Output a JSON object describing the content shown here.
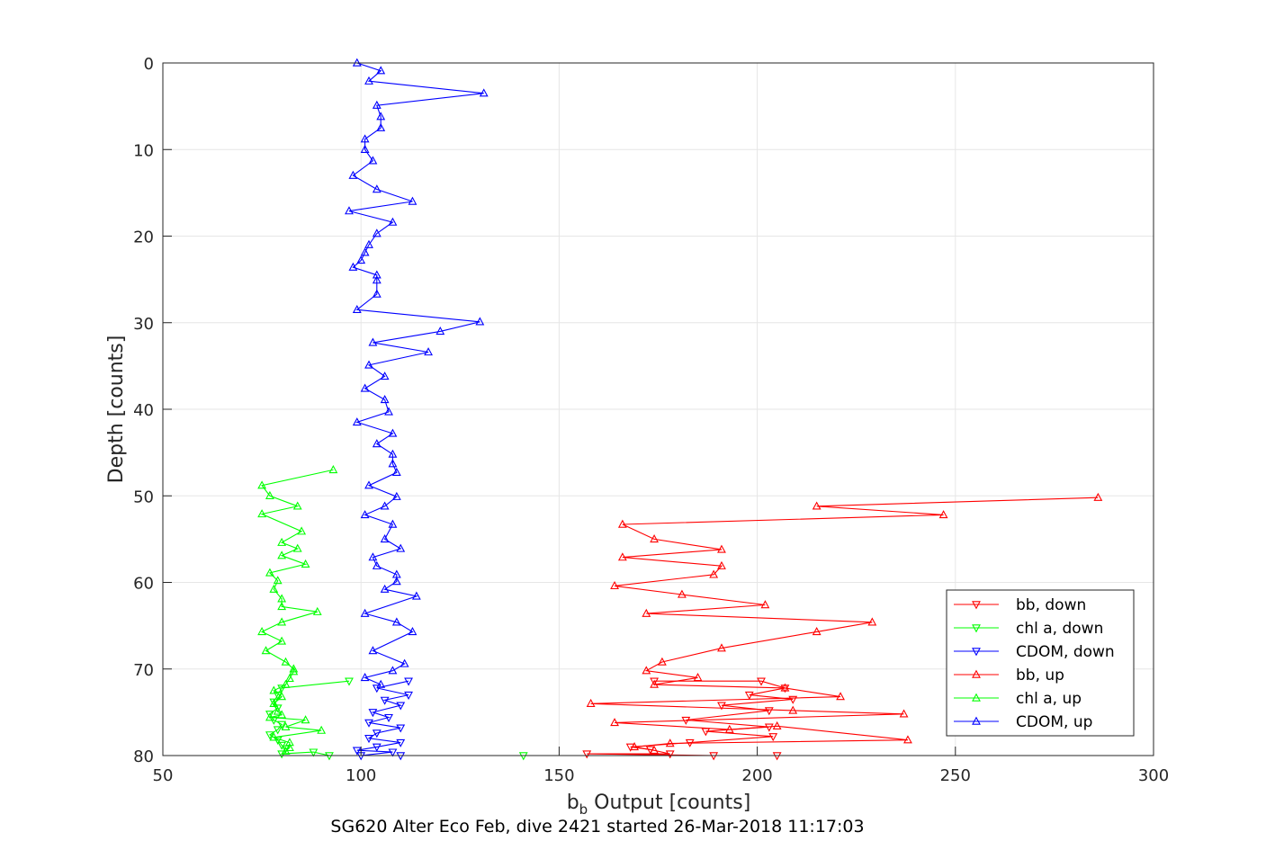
{
  "chart_data": {
    "type": "line",
    "title": "",
    "subtitle": "SG620 Alter Eco Feb, dive 2421 started 26-Mar-2018 11:17:03",
    "xlabel_main": "b",
    "xlabel_sub": "b",
    "xlabel_rest": " Output [counts]",
    "ylabel": "Depth [counts]",
    "xlim": [
      50,
      300
    ],
    "ylim": [
      80,
      0
    ],
    "y_reversed": true,
    "xticks": [
      50,
      100,
      150,
      200,
      250,
      300
    ],
    "yticks": [
      0,
      10,
      20,
      30,
      40,
      50,
      60,
      70,
      80
    ],
    "grid": true,
    "legend_position": "bottom-right",
    "series": [
      {
        "name": "bb, down",
        "color": "#ff0000",
        "marker": "triangle-down",
        "points": [
          [
            174,
            71.4
          ],
          [
            201,
            71.4
          ],
          [
            207,
            72.2
          ],
          [
            198,
            73.0
          ],
          [
            209,
            73.5
          ],
          [
            191,
            74.2
          ],
          [
            203,
            74.8
          ],
          [
            182,
            75.9
          ],
          [
            203,
            76.7
          ],
          [
            187,
            77.2
          ],
          [
            204,
            77.8
          ],
          [
            183,
            78.5
          ],
          [
            168,
            79.0
          ],
          [
            173,
            79.3
          ],
          [
            178,
            79.8
          ],
          [
            157,
            79.8
          ],
          [
            189,
            80.0
          ],
          [
            205,
            80.0
          ]
        ]
      },
      {
        "name": "chl a, down",
        "color": "#00ff00",
        "marker": "triangle-down",
        "points": [
          [
            97,
            71.4
          ],
          [
            80,
            72.2
          ],
          [
            79,
            73.0
          ],
          [
            78,
            73.8
          ],
          [
            79,
            74.5
          ],
          [
            77,
            75.2
          ],
          [
            78,
            75.9
          ],
          [
            80,
            76.4
          ],
          [
            79,
            77.0
          ],
          [
            77,
            77.6
          ],
          [
            79,
            78.2
          ],
          [
            80,
            78.8
          ],
          [
            81,
            79.2
          ],
          [
            80,
            79.8
          ],
          [
            88,
            79.6
          ],
          [
            92,
            80.0
          ],
          [
            141,
            80.0
          ]
        ]
      },
      {
        "name": "CDOM, down",
        "color": "#0000ff",
        "marker": "triangle-down",
        "points": [
          [
            112,
            71.4
          ],
          [
            104,
            72.2
          ],
          [
            112,
            73.0
          ],
          [
            106,
            73.6
          ],
          [
            110,
            74.2
          ],
          [
            103,
            75.0
          ],
          [
            107,
            75.6
          ],
          [
            102,
            76.2
          ],
          [
            110,
            76.8
          ],
          [
            104,
            77.4
          ],
          [
            102,
            78.0
          ],
          [
            110,
            78.5
          ],
          [
            104,
            79.0
          ],
          [
            99,
            79.4
          ],
          [
            108,
            79.6
          ],
          [
            100,
            80.0
          ],
          [
            110,
            80.0
          ]
        ]
      },
      {
        "name": "bb, up",
        "color": "#ff0000",
        "marker": "triangle-up",
        "points": [
          [
            286,
            50.2
          ],
          [
            215,
            51.2
          ],
          [
            247,
            52.2
          ],
          [
            166,
            53.3
          ],
          [
            174,
            55.0
          ],
          [
            191,
            56.2
          ],
          [
            166,
            57.1
          ],
          [
            191,
            58.1
          ],
          [
            189,
            59.1
          ],
          [
            164,
            60.4
          ],
          [
            181,
            61.4
          ],
          [
            202,
            62.6
          ],
          [
            172,
            63.6
          ],
          [
            229,
            64.6
          ],
          [
            215,
            65.7
          ],
          [
            191,
            67.6
          ],
          [
            176,
            69.2
          ],
          [
            172,
            70.2
          ],
          [
            185,
            71.0
          ],
          [
            174,
            71.8
          ],
          [
            207,
            72.2
          ],
          [
            221,
            73.2
          ],
          [
            158,
            74.0
          ],
          [
            209,
            74.8
          ],
          [
            237,
            75.2
          ],
          [
            164,
            76.2
          ],
          [
            193,
            77.0
          ],
          [
            205,
            76.6
          ],
          [
            238,
            78.2
          ],
          [
            178,
            78.6
          ],
          [
            169,
            79.0
          ],
          [
            174,
            79.4
          ]
        ]
      },
      {
        "name": "chl a, up",
        "color": "#00ff00",
        "marker": "triangle-up",
        "points": [
          [
            93,
            47.0
          ],
          [
            75,
            48.8
          ],
          [
            77,
            50.0
          ],
          [
            84,
            51.2
          ],
          [
            75,
            52.1
          ],
          [
            85,
            54.1
          ],
          [
            80,
            55.4
          ],
          [
            84,
            56.1
          ],
          [
            80,
            56.9
          ],
          [
            86,
            57.9
          ],
          [
            77,
            58.9
          ],
          [
            79,
            59.8
          ],
          [
            78,
            60.8
          ],
          [
            80,
            61.9
          ],
          [
            80,
            62.8
          ],
          [
            89,
            63.4
          ],
          [
            80,
            64.6
          ],
          [
            75,
            65.7
          ],
          [
            80,
            66.8
          ],
          [
            76,
            67.9
          ],
          [
            81,
            69.2
          ],
          [
            83,
            70.0
          ],
          [
            83,
            70.3
          ],
          [
            82,
            71.1
          ],
          [
            81,
            71.8
          ],
          [
            78,
            72.5
          ],
          [
            80,
            73.2
          ],
          [
            78,
            74.0
          ],
          [
            79,
            74.9
          ],
          [
            80,
            75.3
          ],
          [
            77,
            75.6
          ],
          [
            86,
            75.9
          ],
          [
            81,
            76.7
          ],
          [
            90,
            77.1
          ],
          [
            78,
            77.9
          ],
          [
            82,
            78.5
          ],
          [
            82,
            79.1
          ],
          [
            81,
            79.5
          ]
        ]
      },
      {
        "name": "CDOM, up",
        "color": "#0000ff",
        "marker": "triangle-up",
        "points": [
          [
            99,
            0.0
          ],
          [
            105,
            0.9
          ],
          [
            102,
            2.1
          ],
          [
            131,
            3.5
          ],
          [
            104,
            4.9
          ],
          [
            105,
            6.2
          ],
          [
            105,
            7.5
          ],
          [
            101,
            8.8
          ],
          [
            101,
            10.0
          ],
          [
            103,
            11.3
          ],
          [
            98,
            13.0
          ],
          [
            104,
            14.6
          ],
          [
            113,
            16.0
          ],
          [
            97,
            17.1
          ],
          [
            108,
            18.4
          ],
          [
            104,
            19.7
          ],
          [
            102,
            21.0
          ],
          [
            101,
            21.9
          ],
          [
            100,
            22.8
          ],
          [
            98,
            23.6
          ],
          [
            104,
            24.5
          ],
          [
            104,
            25.1
          ],
          [
            104,
            26.7
          ],
          [
            99,
            28.5
          ],
          [
            130,
            29.9
          ],
          [
            120,
            31.0
          ],
          [
            103,
            32.3
          ],
          [
            117,
            33.4
          ],
          [
            102,
            34.9
          ],
          [
            106,
            36.2
          ],
          [
            101,
            37.6
          ],
          [
            106,
            38.9
          ],
          [
            107,
            40.3
          ],
          [
            99,
            41.5
          ],
          [
            108,
            42.8
          ],
          [
            104,
            44.0
          ],
          [
            108,
            45.2
          ],
          [
            108,
            46.3
          ],
          [
            109,
            47.3
          ],
          [
            102,
            48.8
          ],
          [
            109,
            50.1
          ],
          [
            106,
            51.2
          ],
          [
            101,
            52.2
          ],
          [
            108,
            53.3
          ],
          [
            106,
            55.0
          ],
          [
            110,
            56.1
          ],
          [
            103,
            57.1
          ],
          [
            104,
            58.1
          ],
          [
            109,
            59.1
          ],
          [
            109,
            59.9
          ],
          [
            106,
            60.8
          ],
          [
            114,
            61.6
          ],
          [
            101,
            63.6
          ],
          [
            109,
            64.6
          ],
          [
            113,
            65.7
          ],
          [
            103,
            67.9
          ],
          [
            111,
            69.4
          ],
          [
            108,
            70.2
          ],
          [
            101,
            71.0
          ],
          [
            105,
            71.8
          ]
        ]
      }
    ]
  }
}
